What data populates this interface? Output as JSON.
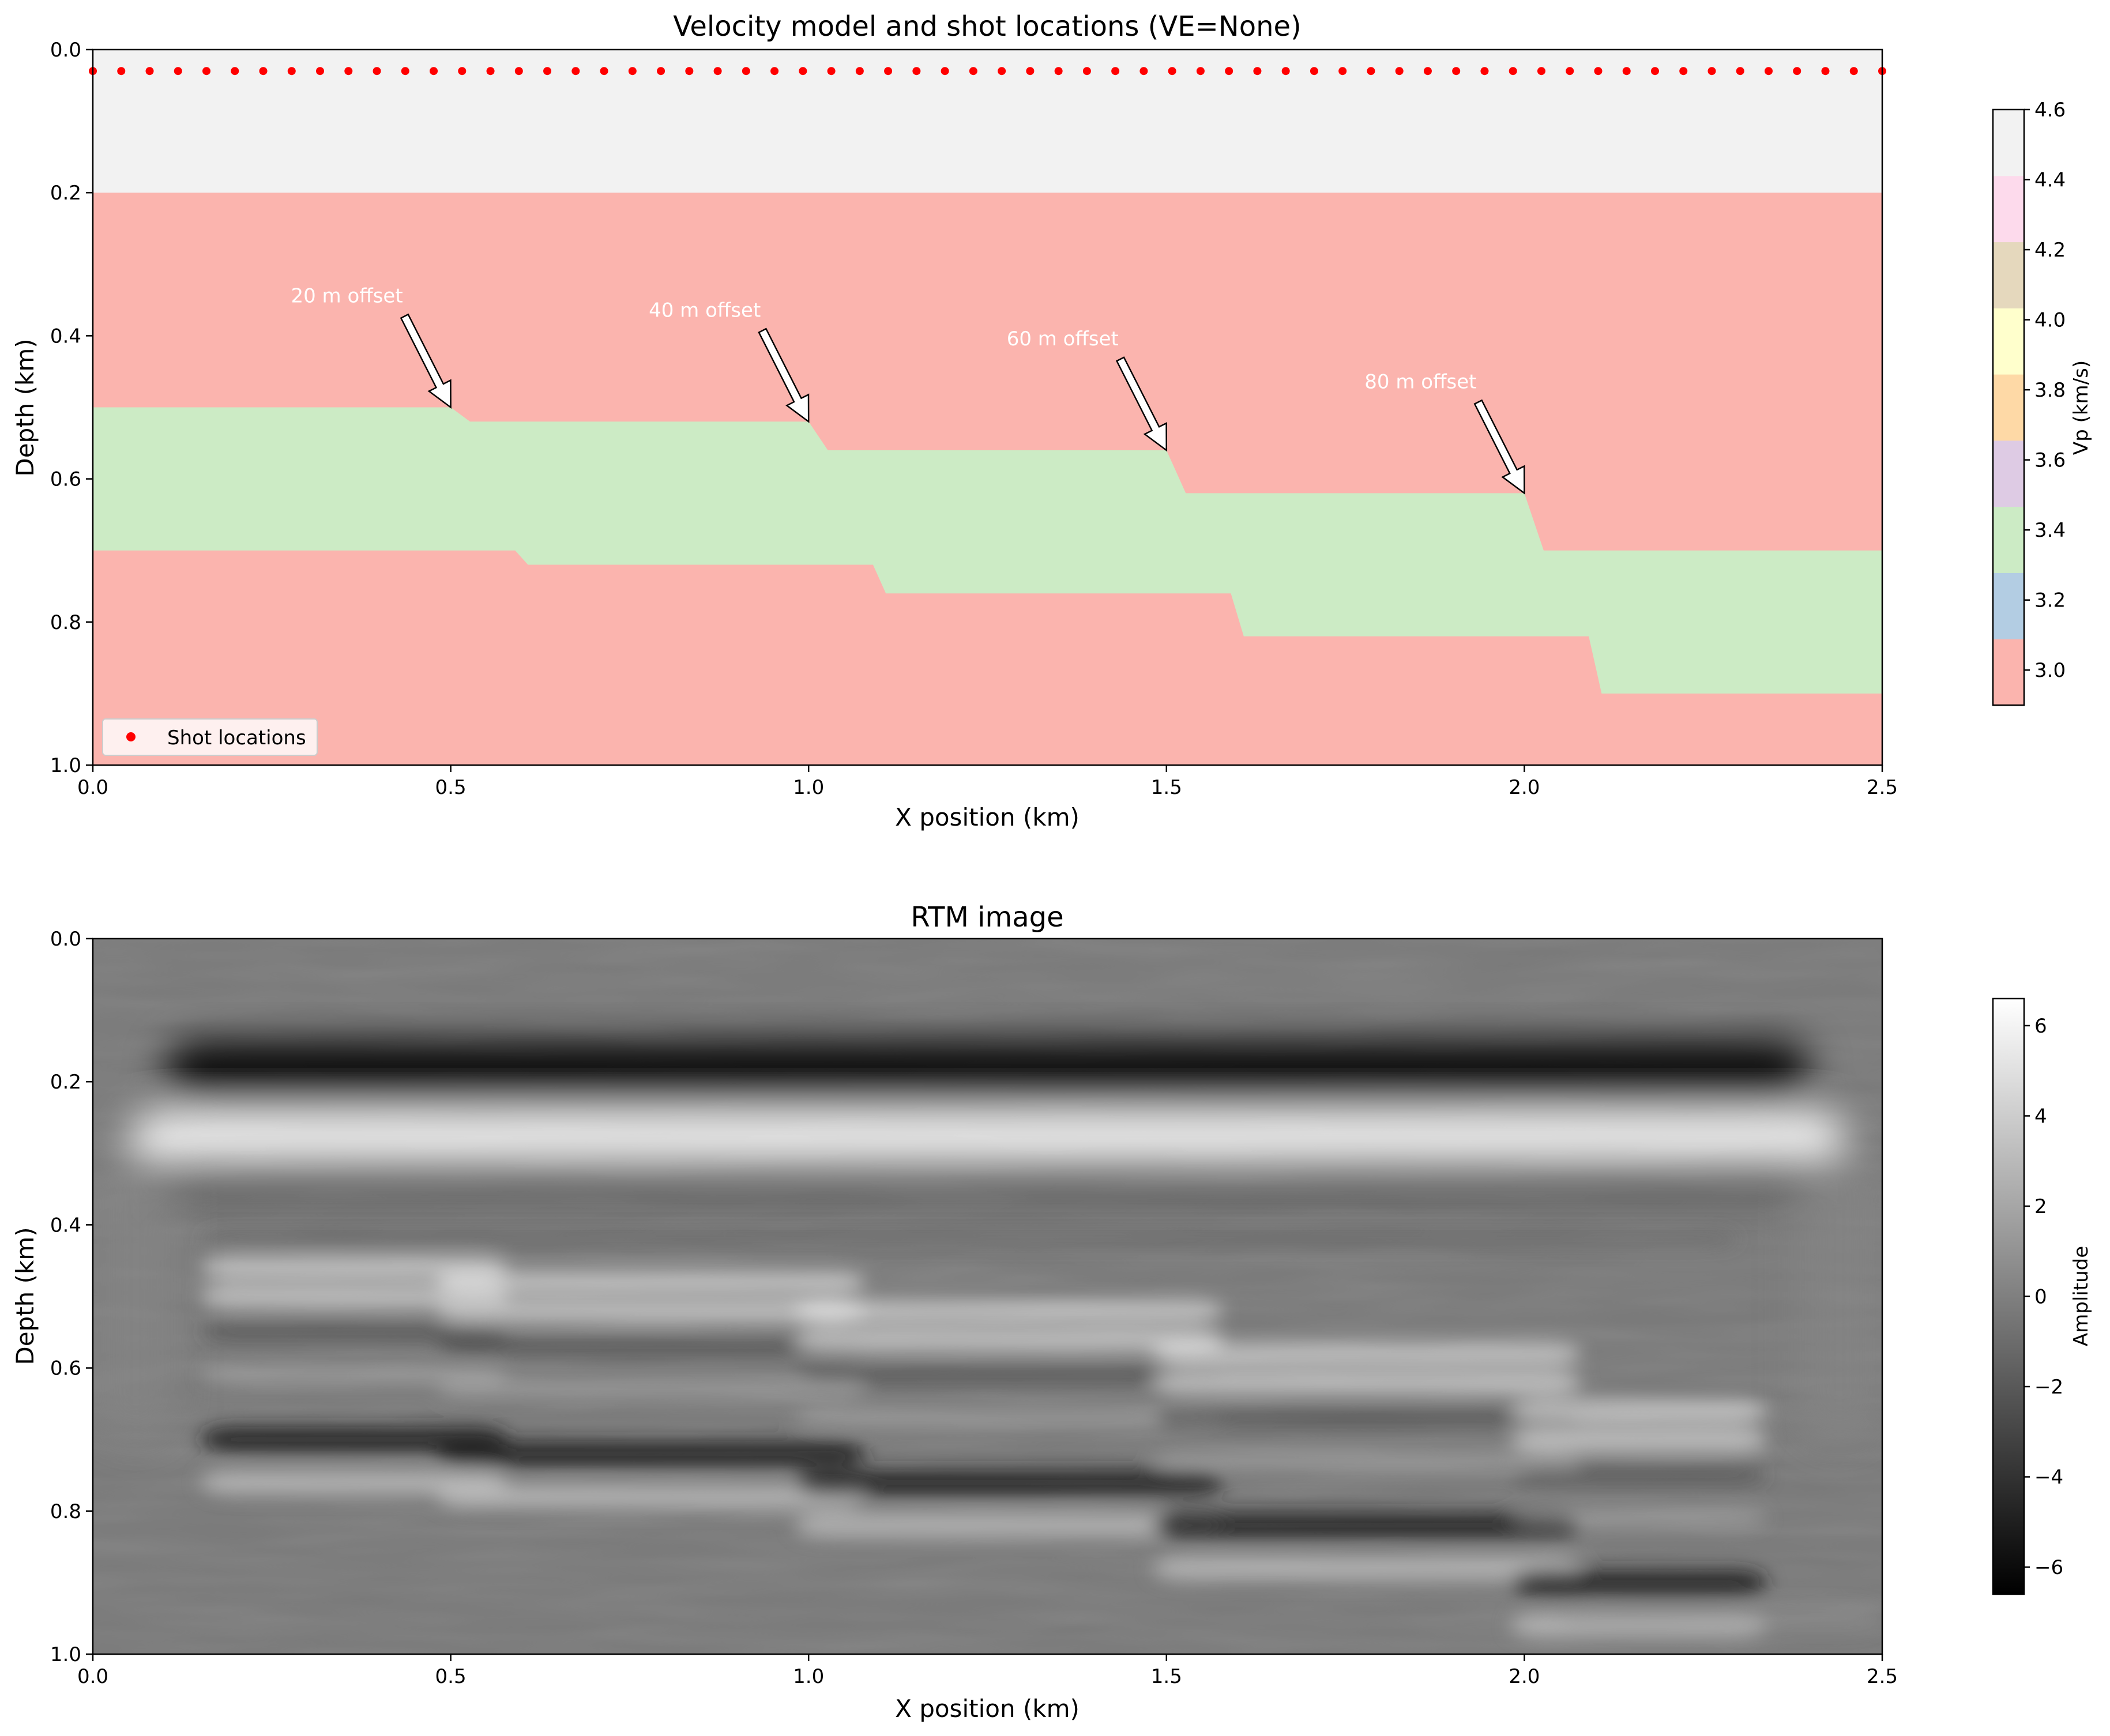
{
  "chart_data": [
    {
      "type": "heatmap",
      "title": "Velocity model and shot locations (VE=None)",
      "xlabel": "X position (km)",
      "ylabel": "Depth (km)",
      "xlim": [
        0.0,
        2.5
      ],
      "ylim": [
        1.0,
        0.0
      ],
      "xticks": [
        "0.0",
        "0.5",
        "1.0",
        "1.5",
        "2.0",
        "2.5"
      ],
      "yticks": [
        "0.0",
        "0.2",
        "0.4",
        "0.6",
        "0.8",
        "1.0"
      ],
      "layers": {
        "background_vp": 3.0,
        "top_layer": {
          "vp": 4.5,
          "bottom_depth": 0.2
        },
        "thin_bed": {
          "vp": 3.4,
          "steps": [
            {
              "x_start": 0.0,
              "x_end": 0.5,
              "top": 0.5,
              "bottom": 0.7
            },
            {
              "x_start": 0.5,
              "x_end": 1.0,
              "top": 0.52,
              "bottom": 0.72
            },
            {
              "x_start": 1.0,
              "x_end": 1.5,
              "top": 0.56,
              "bottom": 0.76
            },
            {
              "x_start": 1.5,
              "x_end": 2.0,
              "top": 0.62,
              "bottom": 0.82
            },
            {
              "x_start": 2.0,
              "x_end": 2.5,
              "top": 0.7,
              "bottom": 0.9
            }
          ]
        }
      },
      "shots": {
        "legend": "Shot locations",
        "depth": 0.03,
        "x_start": 0.0,
        "x_end": 2.5,
        "count": 64,
        "color": "#ff0000"
      },
      "annotations": [
        {
          "text": "20 m offset",
          "x": 0.5,
          "y": 0.5
        },
        {
          "text": "40 m offset",
          "x": 1.0,
          "y": 0.52
        },
        {
          "text": "60 m offset",
          "x": 1.5,
          "y": 0.56
        },
        {
          "text": "80 m offset",
          "x": 2.0,
          "y": 0.62
        }
      ],
      "colorbar": {
        "label": "Vp (km/s)",
        "range": [
          2.9,
          4.6
        ],
        "ticks": [
          "3.0",
          "3.2",
          "3.4",
          "3.6",
          "3.8",
          "4.0",
          "4.2",
          "4.4",
          "4.6"
        ],
        "colors": [
          "#fbb4ae",
          "#b3cde3",
          "#ccebc5",
          "#decbe4",
          "#fed9a6",
          "#ffffcc",
          "#e5d8bd",
          "#fddaec",
          "#f2f2f2"
        ]
      }
    },
    {
      "type": "heatmap",
      "title": "RTM image",
      "xlabel": "X position (km)",
      "ylabel": "Depth (km)",
      "xlim": [
        0.0,
        2.5
      ],
      "ylim": [
        1.0,
        0.0
      ],
      "xticks": [
        "0.0",
        "0.5",
        "1.0",
        "1.5",
        "2.0",
        "2.5"
      ],
      "yticks": [
        "0.0",
        "0.2",
        "0.4",
        "0.6",
        "0.8",
        "1.0"
      ],
      "colormap": "gray",
      "colorbar": {
        "label": "Amplitude",
        "range": [
          -6.6,
          6.6
        ],
        "ticks": [
          "6",
          "4",
          "2",
          "0",
          "−2",
          "−4",
          "−6"
        ]
      }
    }
  ]
}
